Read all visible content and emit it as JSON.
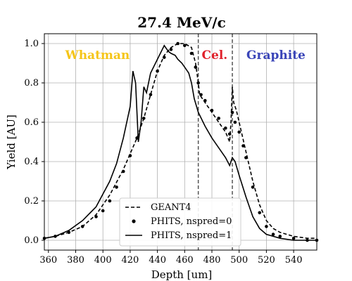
{
  "chart_data": {
    "type": "line",
    "title": "27.4 MeV/c",
    "xlabel": "Depth [um]",
    "ylabel": "Yield [AU]",
    "xlim": [
      357,
      557
    ],
    "ylim": [
      -0.05,
      1.05
    ],
    "xticks": [
      360,
      380,
      400,
      420,
      440,
      460,
      480,
      500,
      520,
      540
    ],
    "yticks": [
      0.0,
      0.2,
      0.4,
      0.6,
      0.8,
      1.0
    ],
    "grid": true,
    "legend_position": "bottom-center",
    "boundaries": [
      470,
      495
    ],
    "regions": [
      {
        "label": "Whatman",
        "x": 396,
        "color": "#f5c518"
      },
      {
        "label": "Cel.",
        "x": 482,
        "color": "#e0202a"
      },
      {
        "label": "Graphite",
        "x": 527,
        "color": "#3a45b8"
      }
    ],
    "series": [
      {
        "name": "GEANT4",
        "style": "dashed",
        "x": [
          357,
          365,
          375,
          385,
          395,
          405,
          415,
          420,
          425,
          430,
          435,
          440,
          445,
          450,
          455,
          460,
          465,
          468,
          470,
          471,
          475,
          480,
          485,
          490,
          493,
          494,
          495,
          496,
          498,
          500,
          505,
          510,
          515,
          520,
          525,
          530,
          540,
          550,
          557
        ],
        "y": [
          0.01,
          0.02,
          0.04,
          0.07,
          0.13,
          0.23,
          0.36,
          0.44,
          0.52,
          0.62,
          0.74,
          0.86,
          0.94,
          0.98,
          1.0,
          1.0,
          0.98,
          0.9,
          0.8,
          0.74,
          0.7,
          0.65,
          0.6,
          0.55,
          0.5,
          0.6,
          0.78,
          0.7,
          0.66,
          0.6,
          0.45,
          0.3,
          0.18,
          0.1,
          0.06,
          0.04,
          0.02,
          0.01,
          0.01
        ]
      },
      {
        "name": "PHITS, nspred=0",
        "style": "dots",
        "x": [
          357,
          365,
          375,
          385,
          395,
          400,
          405,
          410,
          415,
          420,
          425,
          430,
          435,
          440,
          445,
          450,
          455,
          460,
          465,
          468,
          470,
          472,
          475,
          480,
          485,
          490,
          493,
          495,
          497,
          500,
          503,
          505,
          510,
          515,
          520,
          525,
          530,
          540,
          550,
          557
        ],
        "y": [
          0.01,
          0.02,
          0.04,
          0.07,
          0.12,
          0.15,
          0.2,
          0.27,
          0.35,
          0.43,
          0.52,
          0.62,
          0.74,
          0.86,
          0.93,
          0.97,
          1.0,
          0.99,
          0.95,
          0.88,
          0.8,
          0.74,
          0.71,
          0.66,
          0.62,
          0.57,
          0.54,
          0.65,
          0.6,
          0.55,
          0.48,
          0.42,
          0.27,
          0.14,
          0.07,
          0.03,
          0.02,
          0.01,
          0.0,
          0.0
        ]
      },
      {
        "name": "PHITS, nspred=1",
        "style": "solid",
        "x": [
          357,
          365,
          375,
          385,
          395,
          405,
          410,
          415,
          420,
          422,
          424,
          426,
          428,
          430,
          432,
          435,
          440,
          445,
          448,
          450,
          453,
          455,
          458,
          460,
          463,
          465,
          467,
          470,
          475,
          480,
          485,
          490,
          493,
          495,
          497,
          500,
          505,
          510,
          515,
          520,
          525,
          530,
          540,
          550,
          557
        ],
        "y": [
          0.01,
          0.02,
          0.05,
          0.1,
          0.17,
          0.3,
          0.39,
          0.52,
          0.68,
          0.86,
          0.8,
          0.5,
          0.6,
          0.78,
          0.75,
          0.85,
          0.92,
          0.99,
          0.96,
          0.95,
          0.94,
          0.92,
          0.9,
          0.88,
          0.85,
          0.8,
          0.72,
          0.65,
          0.58,
          0.52,
          0.47,
          0.42,
          0.38,
          0.42,
          0.4,
          0.33,
          0.22,
          0.12,
          0.06,
          0.03,
          0.02,
          0.01,
          0.0,
          0.0,
          0.0
        ]
      }
    ]
  }
}
